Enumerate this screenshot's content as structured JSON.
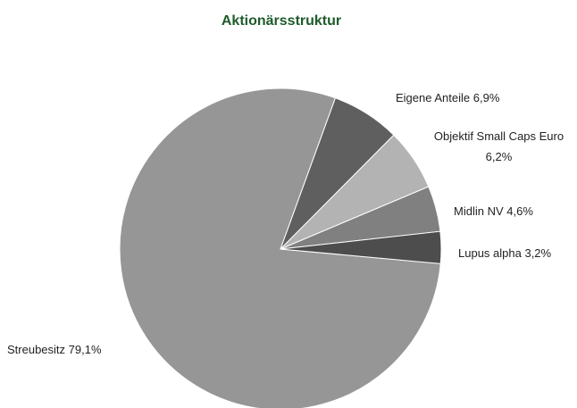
{
  "chart_data": {
    "type": "pie",
    "title": "Aktionärsstruktur",
    "categories": [
      "Streubesitz",
      "Eigene Anteile",
      "Objektif Small Caps Euro",
      "Midlin NV",
      "Lupus alpha"
    ],
    "values": [
      79.1,
      6.9,
      6.2,
      4.6,
      3.2
    ],
    "value_labels": [
      "79,1%",
      "6,9%",
      "6,2%",
      "4,6%",
      "3,2%"
    ],
    "colors": [
      "#969696",
      "#5f5f5f",
      "#b3b3b3",
      "#808080",
      "#4d4d4d"
    ]
  }
}
